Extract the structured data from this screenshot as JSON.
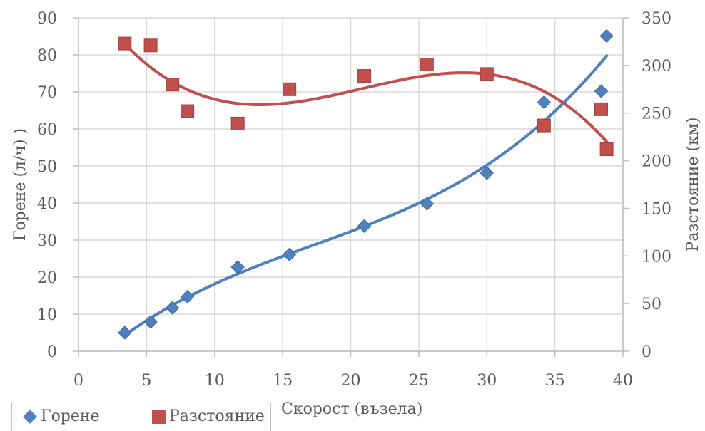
{
  "chart_data": {
    "type": "scatter",
    "xlabel": "Скорост (възела)",
    "ylabel_left": "Горене (л/ч) )",
    "ylabel_right": "Разстояние (км)",
    "xlim": [
      0,
      40
    ],
    "ylim_left": [
      0,
      90
    ],
    "ylim_right": [
      0,
      350
    ],
    "x_ticks": [
      "0",
      "5",
      "10",
      "15",
      "20",
      "25",
      "30",
      "35",
      "40"
    ],
    "y_left_ticks": [
      "0",
      "10",
      "20",
      "30",
      "40",
      "50",
      "60",
      "70",
      "80",
      "90"
    ],
    "y_right_ticks": [
      "0",
      "50",
      "100",
      "150",
      "200",
      "250",
      "300",
      "350"
    ],
    "grid": true,
    "legend_position": "bottom-left",
    "series": [
      {
        "name": "Горене",
        "axis": "left",
        "marker": "diamond",
        "color": "#4f81bd",
        "trendline": "polynomial",
        "points": [
          [
            3.4,
            5
          ],
          [
            5.3,
            7.9
          ],
          [
            6.9,
            11.7
          ],
          [
            8.0,
            14.7
          ],
          [
            11.7,
            22.7
          ],
          [
            15.5,
            26.1
          ],
          [
            21.0,
            33.8
          ],
          [
            25.6,
            39.8
          ],
          [
            30.0,
            48.1
          ],
          [
            34.2,
            67.2
          ],
          [
            38.4,
            70.2
          ],
          [
            38.8,
            85.1
          ]
        ]
      },
      {
        "name": "Разстояние",
        "axis": "right",
        "marker": "square",
        "color": "#c0504d",
        "trendline": "polynomial",
        "points": [
          [
            3.4,
            323
          ],
          [
            5.3,
            321
          ],
          [
            6.9,
            280
          ],
          [
            8.0,
            252
          ],
          [
            11.7,
            239
          ],
          [
            15.5,
            275
          ],
          [
            21.0,
            289
          ],
          [
            25.6,
            301
          ],
          [
            30.0,
            291
          ],
          [
            34.2,
            237
          ],
          [
            38.4,
            254
          ],
          [
            38.8,
            212
          ]
        ]
      }
    ]
  }
}
